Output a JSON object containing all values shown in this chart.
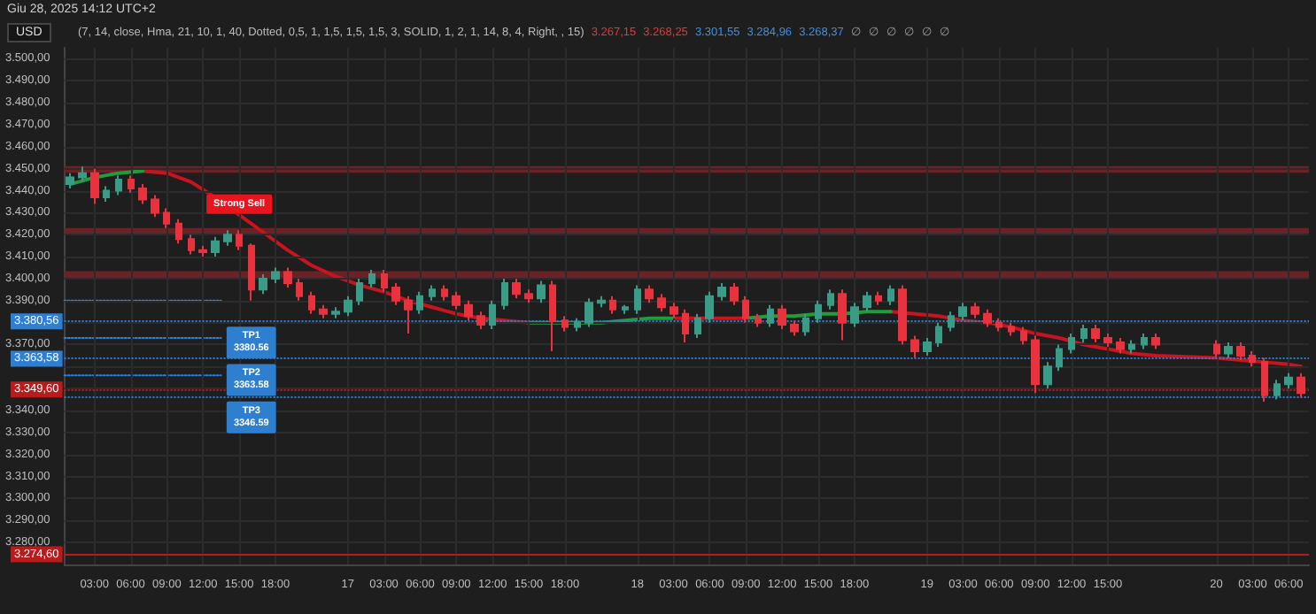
{
  "chart_data": {
    "type": "candlestick",
    "title": "Giu 28, 2025 14:12 UTC+2",
    "subtitle": "(7, 14, close, Hma, 21, 10, 1, 40, Dotted, 0,5, 1, 1,5, 1,5, 1,5, 3, SOLID, 1, 2, 1, 14, 8, 4, Right, , 15)",
    "ylabel": "USD",
    "annotations": [
      "3.267,15",
      "3.268,25",
      "3.301,55",
      "3.284,96",
      "3.268,37",
      "∅",
      "∅",
      "∅",
      "∅",
      "∅",
      "∅",
      {
        "text": "Strong Sell",
        "x": "2025-06-16T15:00",
        "y": 3427
      },
      {
        "text": "TP1\n3380.56",
        "x": "2025-06-16T16:00",
        "y": 3380.56
      },
      {
        "text": "TP2\n3363.58",
        "x": "2025-06-16T16:00",
        "y": 3363.58
      },
      {
        "text": "TP3\n3346.59",
        "x": "2025-06-16T16:00",
        "y": 3346.59
      }
    ],
    "x": [
      "2025-06-16T01:00",
      "2025-06-16T02:00",
      "2025-06-16T03:00",
      "2025-06-16T04:00",
      "2025-06-16T05:00",
      "2025-06-16T06:00",
      "2025-06-16T07:00",
      "2025-06-16T08:00",
      "2025-06-16T09:00",
      "2025-06-16T10:00",
      "2025-06-16T11:00",
      "2025-06-16T12:00",
      "2025-06-16T13:00",
      "2025-06-16T14:00",
      "2025-06-16T15:00",
      "2025-06-16T16:00",
      "2025-06-16T17:00",
      "2025-06-16T18:00",
      "2025-06-16T19:00",
      "2025-06-16T20:00",
      "2025-06-16T21:00",
      "2025-06-16T22:00",
      "2025-06-16T23:00",
      "2025-06-17T00:00",
      "2025-06-17T01:00",
      "2025-06-17T02:00",
      "2025-06-17T03:00",
      "2025-06-17T04:00",
      "2025-06-17T05:00",
      "2025-06-17T06:00",
      "2025-06-17T07:00",
      "2025-06-17T08:00",
      "2025-06-17T09:00",
      "2025-06-17T10:00",
      "2025-06-17T11:00",
      "2025-06-17T12:00",
      "2025-06-17T13:00",
      "2025-06-17T14:00",
      "2025-06-17T15:00",
      "2025-06-17T16:00",
      "2025-06-17T17:00",
      "2025-06-17T18:00",
      "2025-06-17T19:00",
      "2025-06-17T20:00",
      "2025-06-17T21:00",
      "2025-06-17T22:00",
      "2025-06-17T23:00",
      "2025-06-18T00:00",
      "2025-06-18T01:00",
      "2025-06-18T02:00",
      "2025-06-18T03:00",
      "2025-06-18T04:00",
      "2025-06-18T05:00",
      "2025-06-18T06:00",
      "2025-06-18T07:00",
      "2025-06-18T08:00",
      "2025-06-18T09:00",
      "2025-06-18T10:00",
      "2025-06-18T11:00",
      "2025-06-18T12:00",
      "2025-06-18T13:00",
      "2025-06-18T14:00",
      "2025-06-18T15:00",
      "2025-06-18T16:00",
      "2025-06-18T17:00",
      "2025-06-18T18:00",
      "2025-06-18T19:00",
      "2025-06-18T20:00",
      "2025-06-18T21:00",
      "2025-06-18T22:00",
      "2025-06-18T23:00",
      "2025-06-19T00:00",
      "2025-06-19T01:00",
      "2025-06-19T02:00",
      "2025-06-19T03:00",
      "2025-06-19T04:00",
      "2025-06-19T05:00",
      "2025-06-19T06:00",
      "2025-06-19T07:00",
      "2025-06-19T08:00",
      "2025-06-19T09:00",
      "2025-06-19T10:00",
      "2025-06-19T11:00",
      "2025-06-19T12:00",
      "2025-06-19T13:00",
      "2025-06-19T14:00",
      "2025-06-19T15:00",
      "2025-06-19T16:00",
      "2025-06-19T17:00",
      "2025-06-19T18:00",
      "2025-06-19T19:00",
      "2025-06-20T00:00",
      "2025-06-20T01:00",
      "2025-06-20T02:00",
      "2025-06-20T03:00",
      "2025-06-20T04:00",
      "2025-06-20T05:00",
      "2025-06-20T06:00",
      "2025-06-20T07:00"
    ],
    "ohlc": [
      [
        3443,
        3448,
        3441,
        3446
      ],
      [
        3446,
        3451,
        3444,
        3448
      ],
      [
        3448,
        3450,
        3434,
        3437
      ],
      [
        3437,
        3442,
        3435,
        3440
      ],
      [
        3440,
        3447,
        3438,
        3445
      ],
      [
        3445,
        3447,
        3439,
        3441
      ],
      [
        3441,
        3443,
        3434,
        3436
      ],
      [
        3436,
        3438,
        3428,
        3430
      ],
      [
        3430,
        3432,
        3423,
        3425
      ],
      [
        3425,
        3427,
        3416,
        3418
      ],
      [
        3418,
        3420,
        3411,
        3413
      ],
      [
        3413,
        3415,
        3410,
        3412
      ],
      [
        3412,
        3419,
        3410,
        3417
      ],
      [
        3417,
        3422,
        3415,
        3420
      ],
      [
        3420,
        3422,
        3413,
        3415
      ],
      [
        3415,
        3416,
        3390,
        3395
      ],
      [
        3395,
        3402,
        3393,
        3400
      ],
      [
        3400,
        3405,
        3398,
        3403
      ],
      [
        3403,
        3405,
        3396,
        3398
      ],
      [
        3398,
        3400,
        3390,
        3392
      ],
      [
        3392,
        3394,
        3384,
        3386
      ],
      [
        3386,
        3388,
        3382,
        3384
      ],
      [
        3384,
        3387,
        3382,
        3385
      ],
      [
        3385,
        3392,
        3383,
        3390
      ],
      [
        3390,
        3400,
        3388,
        3398
      ],
      [
        3398,
        3404,
        3396,
        3402
      ],
      [
        3402,
        3404,
        3394,
        3396
      ],
      [
        3396,
        3398,
        3388,
        3390
      ],
      [
        3390,
        3392,
        3375,
        3386
      ],
      [
        3386,
        3394,
        3384,
        3392
      ],
      [
        3392,
        3397,
        3390,
        3395
      ],
      [
        3395,
        3397,
        3390,
        3392
      ],
      [
        3392,
        3394,
        3386,
        3388
      ],
      [
        3388,
        3390,
        3381,
        3383
      ],
      [
        3383,
        3385,
        3377,
        3379
      ],
      [
        3379,
        3390,
        3377,
        3388
      ],
      [
        3388,
        3400,
        3386,
        3398
      ],
      [
        3398,
        3400,
        3391,
        3393
      ],
      [
        3393,
        3395,
        3389,
        3391
      ],
      [
        3391,
        3399,
        3389,
        3397
      ],
      [
        3397,
        3399,
        3367,
        3381
      ],
      [
        3381,
        3383,
        3376,
        3378
      ],
      [
        3378,
        3382,
        3376,
        3380
      ],
      [
        3380,
        3391,
        3378,
        3389
      ],
      [
        3389,
        3392,
        3387,
        3390
      ],
      [
        3390,
        3392,
        3384,
        3386
      ],
      [
        3386,
        3388,
        3384,
        3387
      ],
      [
        3386,
        3397,
        3384,
        3395
      ],
      [
        3395,
        3397,
        3389,
        3391
      ],
      [
        3391,
        3393,
        3385,
        3387
      ],
      [
        3387,
        3389,
        3382,
        3384
      ],
      [
        3384,
        3386,
        3371,
        3375
      ],
      [
        3375,
        3384,
        3373,
        3382
      ],
      [
        3382,
        3394,
        3380,
        3392
      ],
      [
        3392,
        3398,
        3390,
        3396
      ],
      [
        3396,
        3398,
        3388,
        3390
      ],
      [
        3390,
        3392,
        3380,
        3382
      ],
      [
        3382,
        3384,
        3378,
        3380
      ],
      [
        3380,
        3388,
        3378,
        3386
      ],
      [
        3386,
        3388,
        3377,
        3379
      ],
      [
        3379,
        3381,
        3374,
        3376
      ],
      [
        3376,
        3384,
        3374,
        3382
      ],
      [
        3382,
        3390,
        3380,
        3388
      ],
      [
        3388,
        3395,
        3386,
        3393
      ],
      [
        3393,
        3395,
        3372,
        3380
      ],
      [
        3380,
        3389,
        3378,
        3387
      ],
      [
        3387,
        3394,
        3385,
        3392
      ],
      [
        3392,
        3394,
        3388,
        3390
      ],
      [
        3390,
        3397,
        3388,
        3395
      ],
      [
        3395,
        3397,
        3370,
        3372
      ],
      [
        3372,
        3374,
        3364,
        3367
      ],
      [
        3367,
        3373,
        3365,
        3371
      ],
      [
        3371,
        3380,
        3369,
        3378
      ],
      [
        3378,
        3385,
        3376,
        3383
      ],
      [
        3383,
        3389,
        3381,
        3387
      ],
      [
        3387,
        3389,
        3382,
        3384
      ],
      [
        3384,
        3386,
        3378,
        3380
      ],
      [
        3380,
        3382,
        3376,
        3378
      ],
      [
        3378,
        3380,
        3374,
        3376
      ],
      [
        3376,
        3378,
        3370,
        3372
      ],
      [
        3372,
        3374,
        3348,
        3352
      ],
      [
        3352,
        3362,
        3350,
        3360
      ],
      [
        3360,
        3370,
        3358,
        3368
      ],
      [
        3368,
        3375,
        3366,
        3373
      ],
      [
        3373,
        3379,
        3371,
        3377
      ],
      [
        3377,
        3379,
        3371,
        3373
      ],
      [
        3373,
        3375,
        3369,
        3371
      ],
      [
        3371,
        3373,
        3366,
        3368
      ],
      [
        3368,
        3372,
        3366,
        3370
      ],
      [
        3370,
        3375,
        3368,
        3373
      ],
      [
        3373,
        3375,
        3368,
        3370
      ],
      [
        3370,
        3372,
        3364,
        3366
      ],
      [
        3366,
        3371,
        3364,
        3369
      ],
      [
        3369,
        3371,
        3363,
        3365
      ],
      [
        3365,
        3367,
        3360,
        3362
      ],
      [
        3362,
        3364,
        3344,
        3347
      ],
      [
        3347,
        3354,
        3345,
        3352
      ],
      [
        3352,
        3357,
        3350,
        3355
      ],
      [
        3355,
        3357,
        3346,
        3348
      ]
    ],
    "colors": [
      "#3a9b86",
      "#3a9b86",
      "#e8323e",
      "#3a9b86",
      "#3a9b86",
      "#e8323e",
      "#e8323e",
      "#e8323e",
      "#e8323e",
      "#e8323e",
      "#e8323e",
      "#e8323e",
      "#3a9b86",
      "#3a9b86",
      "#e8323e",
      "#e8323e",
      "#3a9b86",
      "#3a9b86",
      "#e8323e",
      "#e8323e",
      "#e8323e",
      "#e8323e",
      "#3a9b86",
      "#3a9b86",
      "#3a9b86",
      "#3a9b86",
      "#e8323e",
      "#e8323e",
      "#e8323e",
      "#3a9b86",
      "#3a9b86",
      "#e8323e",
      "#e8323e",
      "#e8323e",
      "#e8323e",
      "#3a9b86",
      "#3a9b86",
      "#e8323e",
      "#e8323e",
      "#3a9b86",
      "#e8323e",
      "#e8323e",
      "#3a9b86",
      "#3a9b86",
      "#3a9b86",
      "#e8323e",
      "#3a9b86",
      "#3a9b86",
      "#e8323e",
      "#e8323e",
      "#e8323e",
      "#e8323e",
      "#3a9b86",
      "#3a9b86",
      "#3a9b86",
      "#e8323e",
      "#e8323e",
      "#e8323e",
      "#3a9b86",
      "#e8323e",
      "#e8323e",
      "#3a9b86",
      "#3a9b86",
      "#3a9b86",
      "#e8323e",
      "#3a9b86",
      "#3a9b86",
      "#e8323e",
      "#3a9b86",
      "#e8323e",
      "#e8323e",
      "#3a9b86",
      "#3a9b86",
      "#3a9b86",
      "#3a9b86",
      "#e8323e",
      "#e8323e",
      "#e8323e",
      "#e8323e",
      "#e8323e",
      "#e8323e",
      "#3a9b86",
      "#3a9b86",
      "#3a9b86",
      "#3a9b86",
      "#e8323e",
      "#e8323e",
      "#e8323e",
      "#3a9b86",
      "#3a9b86",
      "#e8323e",
      "#e8323e",
      "#3a9b86",
      "#e8323e",
      "#e8323e",
      "#e8323e",
      "#3a9b86",
      "#3a9b86",
      "#e8323e"
    ],
    "series": [
      {
        "type": "line",
        "color": "#c8141e",
        "line_style": "solid",
        "x": [
          "2025-06-16T07:00",
          "2025-06-16T09:00",
          "2025-06-16T11:00",
          "2025-06-16T13:00",
          "2025-06-16T15:00",
          "2025-06-16T17:00",
          "2025-06-16T19:00",
          "2025-06-16T21:00",
          "2025-06-16T23:00",
          "2025-06-17T01:00",
          "2025-06-17T03:00",
          "2025-06-17T05:00",
          "2025-06-17T07:00",
          "2025-06-17T09:00",
          "2025-06-17T11:00",
          "2025-06-17T13:00",
          "2025-06-17T15:00",
          "2025-06-17T17:00",
          "2025-06-17T19:00",
          "2025-06-17T21:00",
          "2025-06-17T23:00",
          "2025-06-18T01:00",
          "2025-06-18T03:00",
          "2025-06-18T05:00",
          "2025-06-18T07:00",
          "2025-06-18T09:00",
          "2025-06-18T11:00",
          "2025-06-18T13:00",
          "2025-06-18T15:00",
          "2025-06-18T17:00",
          "2025-06-18T19:00",
          "2025-06-18T21:00",
          "2025-06-18T23:00",
          "2025-06-19T01:00",
          "2025-06-19T03:00",
          "2025-06-19T05:00",
          "2025-06-19T07:00",
          "2025-06-19T09:00",
          "2025-06-19T11:00",
          "2025-06-19T13:00",
          "2025-06-19T15:00",
          "2025-06-19T17:00",
          "2025-06-19T19:00",
          "2025-06-20T00:00",
          "2025-06-20T02:00",
          "2025-06-20T04:00",
          "2025-06-20T06:00",
          "2025-06-20T07:00"
        ],
        "values": [
          3449,
          3448,
          3444,
          3437,
          3429,
          3421,
          3413,
          3406,
          3401,
          3397,
          3394,
          3390,
          3387,
          3384,
          3382,
          3381,
          3380,
          null,
          null,
          null,
          null,
          null,
          3382,
          3382,
          3382,
          3382,
          null,
          null,
          null,
          null,
          null,
          3385,
          3384,
          3383,
          3381,
          3380,
          3378,
          3375,
          3373,
          3370,
          3368,
          3366,
          3365,
          3364,
          3363,
          3362,
          3361,
          3360
        ]
      },
      {
        "type": "line",
        "color": "#1f9d3a",
        "line_style": "solid",
        "x": [
          "2025-06-16T01:00",
          "2025-06-16T03:00",
          "2025-06-16T05:00",
          "2025-06-16T07:00",
          "2025-06-16T09:00",
          "2025-06-16T11:00",
          "2025-06-16T13:00",
          "2025-06-16T15:00",
          "2025-06-16T17:00",
          "2025-06-16T19:00",
          "2025-06-16T21:00",
          "2025-06-16T23:00",
          "2025-06-17T01:00",
          "2025-06-17T03:00",
          "2025-06-17T05:00",
          "2025-06-17T07:00",
          "2025-06-17T09:00",
          "2025-06-17T11:00",
          "2025-06-17T13:00",
          "2025-06-17T15:00",
          "2025-06-17T17:00",
          "2025-06-17T19:00",
          "2025-06-17T21:00",
          "2025-06-17T23:00",
          "2025-06-18T01:00",
          "2025-06-18T03:00",
          "2025-06-18T05:00",
          "2025-06-18T07:00",
          "2025-06-18T09:00",
          "2025-06-18T11:00",
          "2025-06-18T13:00",
          "2025-06-18T15:00",
          "2025-06-18T17:00",
          "2025-06-18T19:00",
          "2025-06-18T21:00"
        ],
        "values": [
          3443,
          3446,
          3448,
          3449,
          null,
          null,
          null,
          null,
          null,
          null,
          null,
          null,
          null,
          null,
          null,
          null,
          null,
          null,
          null,
          3380,
          3380,
          3380,
          3380,
          3381,
          3382,
          3382,
          null,
          null,
          3382,
          3383,
          3383,
          3384,
          3384,
          3385,
          3385
        ]
      },
      {
        "type": "line",
        "color": "#2f7fd0",
        "line_style": "dotted",
        "x": [
          "2025-06-16T00:30",
          "2025-06-16T13:30"
        ],
        "values": [
          3390,
          3390
        ]
      },
      {
        "type": "line",
        "color": "#2f7fd0",
        "line_style": "dotted",
        "x": [
          "2025-06-16T00:30",
          "2025-06-16T13:30"
        ],
        "values": [
          3373,
          3373
        ]
      },
      {
        "type": "line",
        "color": "#2f7fd0",
        "line_style": "dotted",
        "x": [
          "2025-06-16T00:30",
          "2025-06-16T13:30"
        ],
        "values": [
          3356,
          3356
        ]
      }
    ],
    "ref_lines": [
      {
        "axis": "y",
        "value": 3380.56,
        "label": "3.380,56",
        "color": "#2f7fd0",
        "line_style": "dotted"
      },
      {
        "axis": "y",
        "value": 3363.58,
        "label": "3.363,58",
        "color": "#2f7fd0",
        "line_style": "dotted"
      },
      {
        "axis": "y",
        "value": 3346.59,
        "label": null,
        "color": "#2f7fd0",
        "line_style": "dotted"
      },
      {
        "axis": "y",
        "value": 3349.6,
        "label": "3.349,60",
        "color": "#b71c1c",
        "line_style": "dotted"
      },
      {
        "axis": "y",
        "value": 3274.6,
        "label": "3.274,60",
        "color": "#b71c1c",
        "line_style": "solid"
      }
    ],
    "bands": [
      {
        "axis": "y",
        "from": 3448.2,
        "to": 3451.2,
        "color": "#6b2226"
      },
      {
        "axis": "y",
        "from": 3420,
        "to": 3423,
        "color": "#6b2226"
      },
      {
        "axis": "y",
        "from": 3400.4,
        "to": 3403.4,
        "color": "#6b2226"
      }
    ],
    "xlim": [
      "2025-06-16T00:30",
      "2025-06-20T07:40"
    ],
    "xticks": [
      {
        "value": "2025-06-16T03:00",
        "label": "03:00"
      },
      {
        "value": "2025-06-16T06:00",
        "label": "06:00"
      },
      {
        "value": "2025-06-16T09:00",
        "label": "09:00"
      },
      {
        "value": "2025-06-16T12:00",
        "label": "12:00"
      },
      {
        "value": "2025-06-16T15:00",
        "label": "15:00"
      },
      {
        "value": "2025-06-16T18:00",
        "label": "18:00"
      },
      {
        "value": "2025-06-17T00:00",
        "label": "17"
      },
      {
        "value": "2025-06-17T03:00",
        "label": "03:00"
      },
      {
        "value": "2025-06-17T06:00",
        "label": "06:00"
      },
      {
        "value": "2025-06-17T09:00",
        "label": "09:00"
      },
      {
        "value": "2025-06-17T12:00",
        "label": "12:00"
      },
      {
        "value": "2025-06-17T15:00",
        "label": "15:00"
      },
      {
        "value": "2025-06-17T18:00",
        "label": "18:00"
      },
      {
        "value": "2025-06-18T00:00",
        "label": "18"
      },
      {
        "value": "2025-06-18T03:00",
        "label": "03:00"
      },
      {
        "value": "2025-06-18T06:00",
        "label": "06:00"
      },
      {
        "value": "2025-06-18T09:00",
        "label": "09:00"
      },
      {
        "value": "2025-06-18T12:00",
        "label": "12:00"
      },
      {
        "value": "2025-06-18T15:00",
        "label": "15:00"
      },
      {
        "value": "2025-06-18T18:00",
        "label": "18:00"
      },
      {
        "value": "2025-06-19T00:00",
        "label": "19"
      },
      {
        "value": "2025-06-19T03:00",
        "label": "03:00"
      },
      {
        "value": "2025-06-19T06:00",
        "label": "06:00"
      },
      {
        "value": "2025-06-19T09:00",
        "label": "09:00"
      },
      {
        "value": "2025-06-19T12:00",
        "label": "12:00"
      },
      {
        "value": "2025-06-19T15:00",
        "label": "15:00"
      },
      {
        "value": "2025-06-20T00:00",
        "label": "20"
      },
      {
        "value": "2025-06-20T03:00",
        "label": "03:00"
      },
      {
        "value": "2025-06-20T06:00",
        "label": "06:00"
      }
    ],
    "ylim": [
      3270,
      3505
    ],
    "yticks": [
      {
        "value": 3280,
        "label": "3.280,00"
      },
      {
        "value": 3290,
        "label": "3.290,00"
      },
      {
        "value": 3300,
        "label": "3.300,00"
      },
      {
        "value": 3310,
        "label": "3.310,00"
      },
      {
        "value": 3320,
        "label": "3.320,00"
      },
      {
        "value": 3330,
        "label": "3.330,00"
      },
      {
        "value": 3340,
        "label": "3.340,00"
      },
      {
        "value": 3350,
        "label": null
      },
      {
        "value": 3360,
        "label": null
      },
      {
        "value": 3370,
        "label": "3.370,00"
      },
      {
        "value": 3380,
        "label": null
      },
      {
        "value": 3390,
        "label": "3.390,00"
      },
      {
        "value": 3400,
        "label": "3.400,00"
      },
      {
        "value": 3410,
        "label": "3.410,00"
      },
      {
        "value": 3420,
        "label": "3.420,00"
      },
      {
        "value": 3430,
        "label": "3.430,00"
      },
      {
        "value": 3440,
        "label": "3.440,00"
      },
      {
        "value": 3450,
        "label": "3.450,00"
      },
      {
        "value": 3460,
        "label": "3.460,00"
      },
      {
        "value": 3470,
        "label": "3.470,00"
      },
      {
        "value": 3480,
        "label": "3.480,00"
      },
      {
        "value": 3490,
        "label": "3.490,00"
      },
      {
        "value": 3500,
        "label": "3.500,00"
      }
    ],
    "grid": true
  }
}
